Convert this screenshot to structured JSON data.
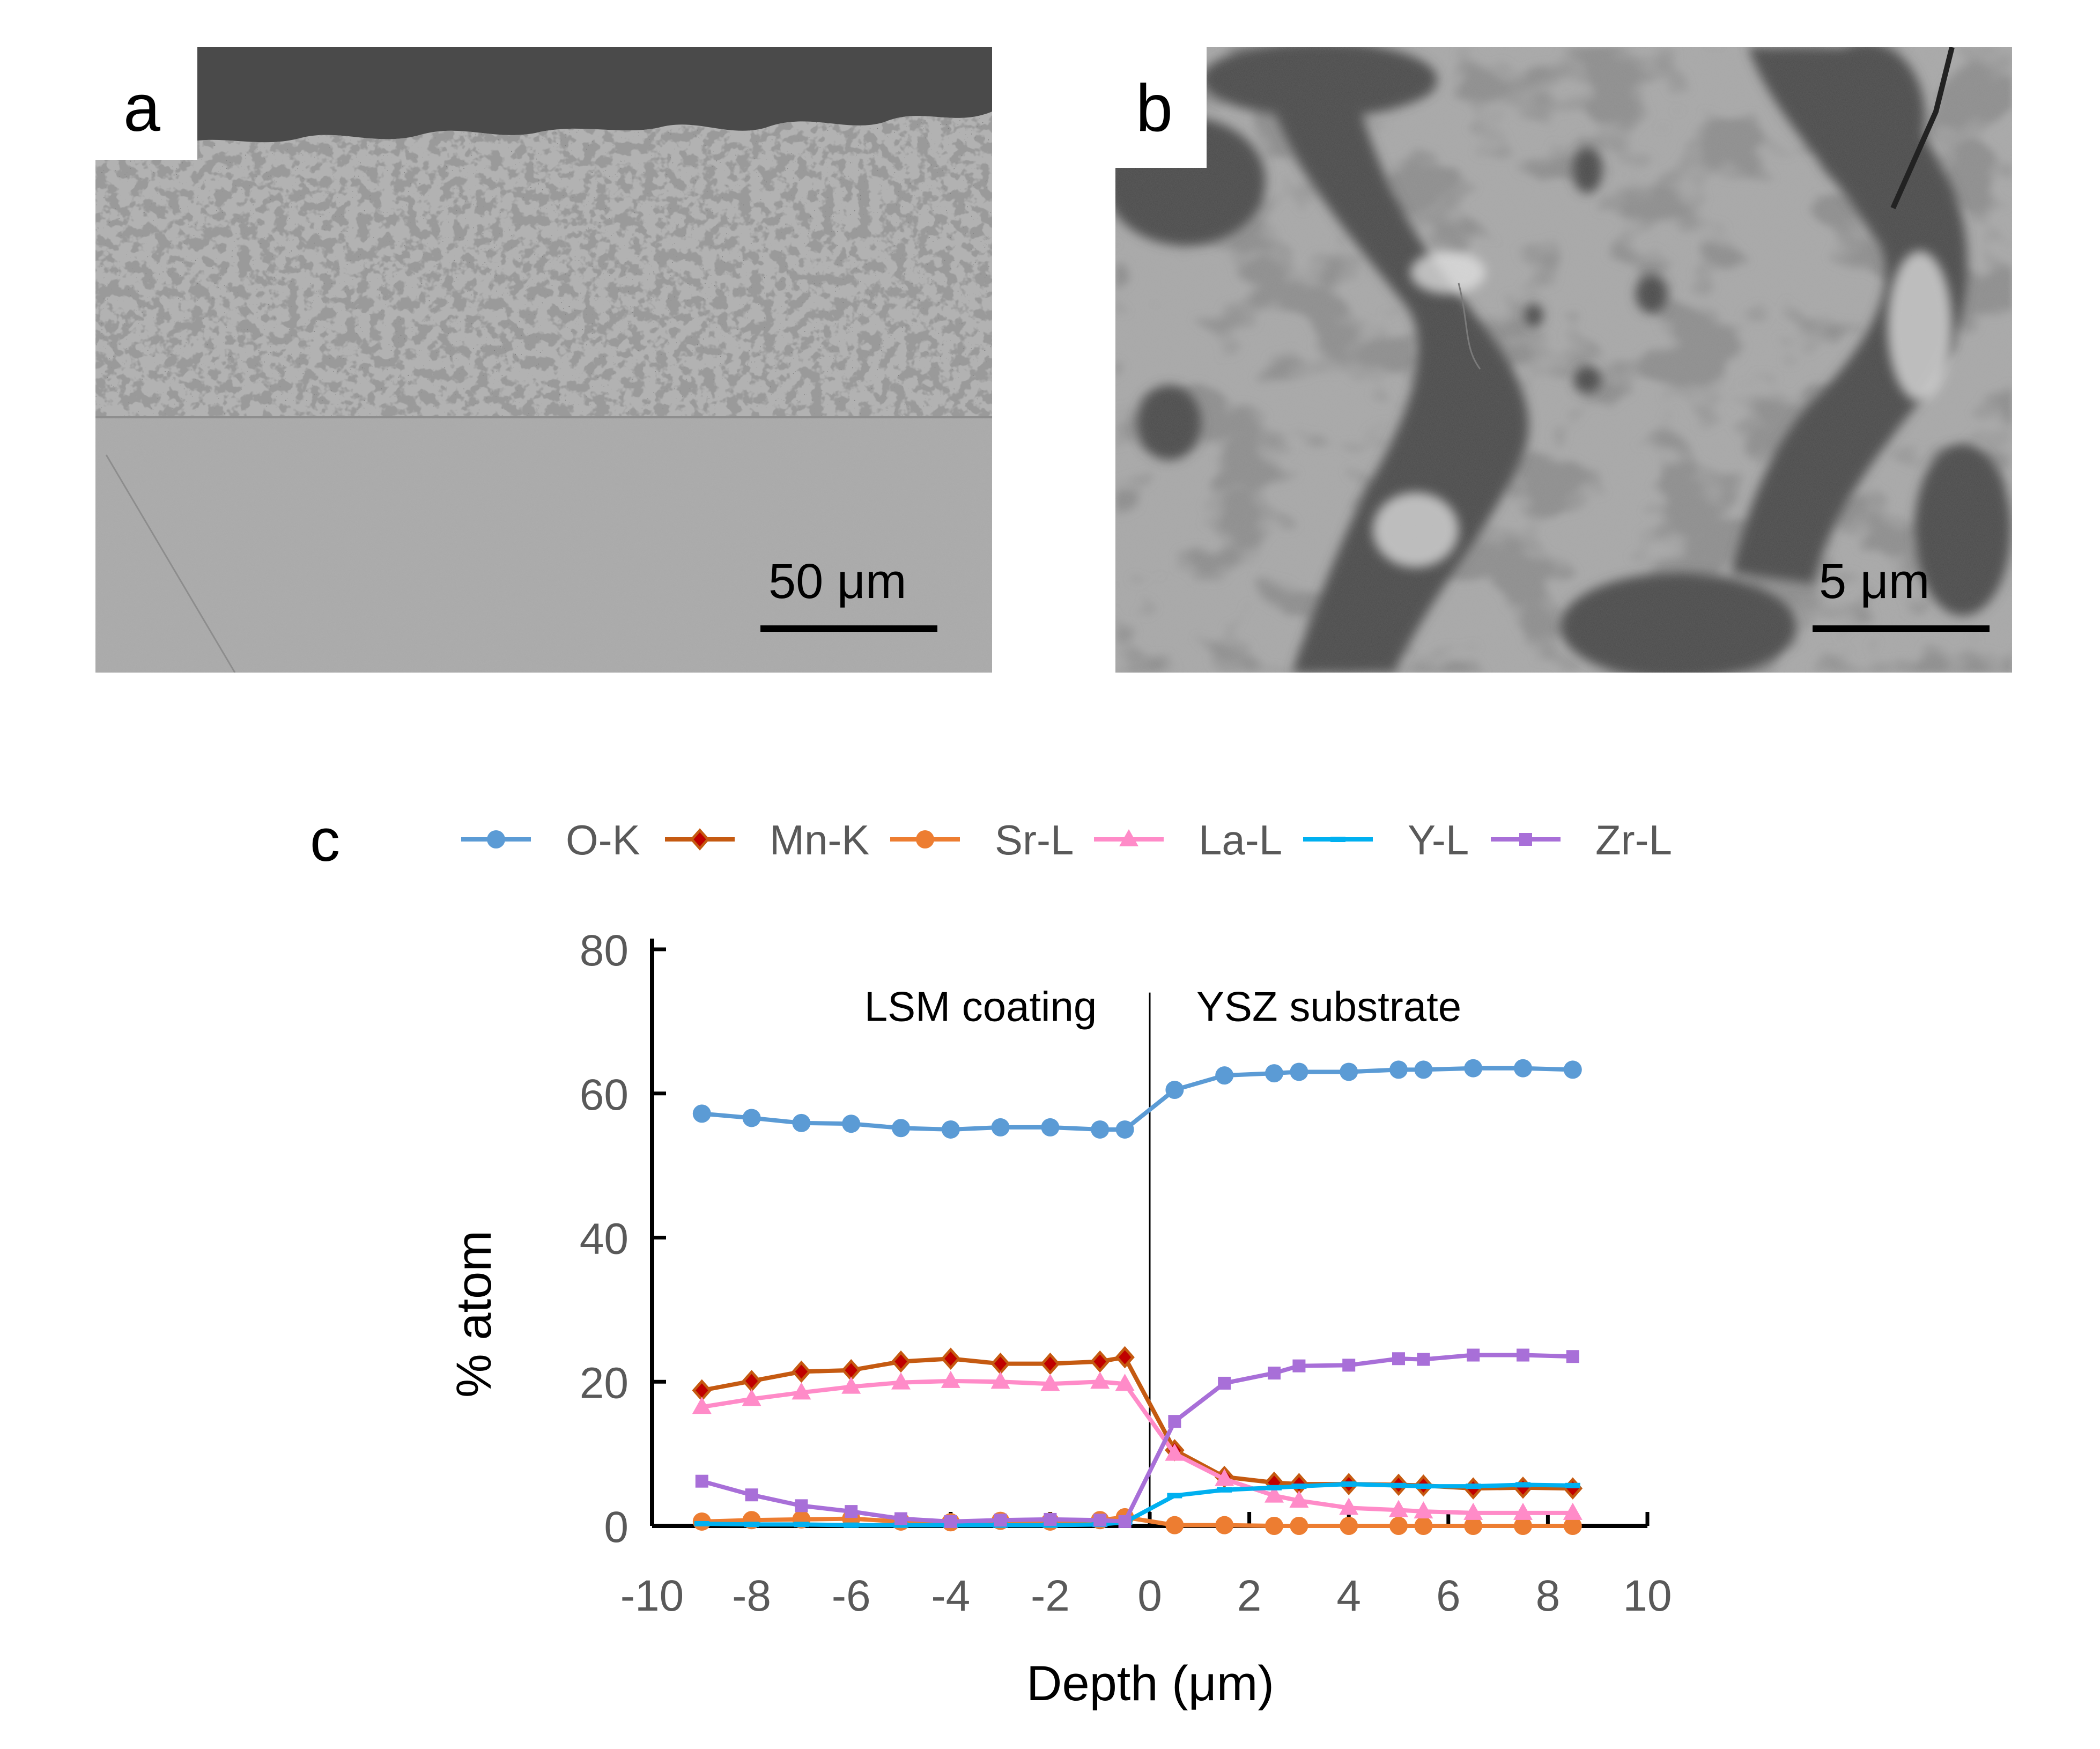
{
  "panels": {
    "a": {
      "letter": "a",
      "scale_label": "50 μm"
    },
    "b": {
      "letter": "b",
      "scale_label": "5 μm"
    },
    "c": {
      "letter": "c"
    }
  },
  "chart_data": {
    "type": "line",
    "xlabel": "Depth (μm)",
    "ylabel": "% atom",
    "xlim": [
      -10,
      10
    ],
    "ylim": [
      0,
      80
    ],
    "xticks": [
      -10,
      -8,
      -6,
      -4,
      -2,
      0,
      2,
      4,
      6,
      8,
      10
    ],
    "yticks": [
      0,
      20,
      40,
      60,
      80
    ],
    "legend_position": "top",
    "annotations": [
      {
        "text": "LSM coating",
        "x": -3.4,
        "y": 72
      },
      {
        "text": "YSZ substrate",
        "x": 3.6,
        "y": 72
      }
    ],
    "divider_x": 0,
    "series": [
      {
        "name": "O-K",
        "color": "#5b9bd5",
        "marker": "circle",
        "x": [
          -9,
          -8,
          -7,
          -6,
          -5,
          -4,
          -3,
          -2,
          -1,
          -0.5,
          0.5,
          1.5,
          2.5,
          3,
          4,
          5,
          5.5,
          6.5,
          7.5,
          8.5
        ],
        "y": [
          57.2,
          56.6,
          55.9,
          55.8,
          55.2,
          55.0,
          55.3,
          55.3,
          55.0,
          55.0,
          60.5,
          62.5,
          62.8,
          63.0,
          63.0,
          63.3,
          63.3,
          63.5,
          63.5,
          63.3
        ]
      },
      {
        "name": "Mn-K",
        "color": "#c55a11",
        "marker_fill": "#c00000",
        "marker": "diamond",
        "x": [
          -9,
          -8,
          -7,
          -6,
          -5,
          -4,
          -3,
          -2,
          -1,
          -0.5,
          0.5,
          1.5,
          2.5,
          3,
          4,
          5,
          5.5,
          6.5,
          7.5,
          8.5
        ],
        "y": [
          18.8,
          20.1,
          21.4,
          21.6,
          22.8,
          23.2,
          22.5,
          22.5,
          22.8,
          23.4,
          10.5,
          6.8,
          6.0,
          5.8,
          5.8,
          5.7,
          5.6,
          5.2,
          5.3,
          5.2
        ]
      },
      {
        "name": "Sr-L",
        "color": "#ed7d31",
        "marker": "circle",
        "x": [
          -9,
          -8,
          -7,
          -6,
          -5,
          -4,
          -3,
          -2,
          -1,
          -0.5,
          0.5,
          1.5,
          2.5,
          3,
          4,
          5,
          5.5,
          6.5,
          7.5,
          8.5
        ],
        "y": [
          0.6,
          0.8,
          0.9,
          1.0,
          0.6,
          0.5,
          0.7,
          0.6,
          0.8,
          1.2,
          0.1,
          0.1,
          0.0,
          0.0,
          0.0,
          0.0,
          0.0,
          0.0,
          0.0,
          0.0
        ]
      },
      {
        "name": "La-L",
        "color": "#ff8bc8",
        "marker": "triangle",
        "x": [
          -9,
          -8,
          -7,
          -6,
          -5,
          -4,
          -3,
          -2,
          -1,
          -0.5,
          0.5,
          1.5,
          2.5,
          3,
          4,
          5,
          5.5,
          6.5,
          7.5,
          8.5
        ],
        "y": [
          16.5,
          17.6,
          18.5,
          19.3,
          19.9,
          20.1,
          20.0,
          19.7,
          20.0,
          19.7,
          10.0,
          6.5,
          4.2,
          3.5,
          2.5,
          2.2,
          2.0,
          1.8,
          1.8,
          1.8
        ]
      },
      {
        "name": "Y-L",
        "color": "#00b0f0",
        "marker": "dash",
        "x": [
          -9,
          -8,
          -7,
          -6,
          -5,
          -4,
          -3,
          -2,
          -1,
          -0.5,
          0.5,
          1.5,
          2.5,
          3,
          4,
          5,
          5.5,
          6.5,
          7.5,
          8.5
        ],
        "y": [
          0.3,
          0.2,
          0.2,
          0.1,
          0.1,
          0.1,
          0.1,
          0.1,
          0.2,
          0.5,
          4.2,
          5.0,
          5.3,
          5.5,
          5.8,
          5.6,
          5.5,
          5.5,
          5.7,
          5.6
        ]
      },
      {
        "name": "Zr-L",
        "color": "#a86fd8",
        "marker": "square",
        "x": [
          -9,
          -8,
          -7,
          -6,
          -5,
          -4,
          -3,
          -2,
          -1,
          -0.5,
          0.5,
          1.5,
          2.5,
          3,
          4,
          5,
          5.5,
          6.5,
          7.5,
          8.5
        ],
        "y": [
          6.2,
          4.3,
          2.8,
          2.0,
          1.0,
          0.6,
          0.8,
          0.9,
          0.8,
          0.6,
          14.5,
          19.8,
          21.2,
          22.2,
          22.3,
          23.2,
          23.1,
          23.7,
          23.7,
          23.5
        ]
      }
    ]
  }
}
